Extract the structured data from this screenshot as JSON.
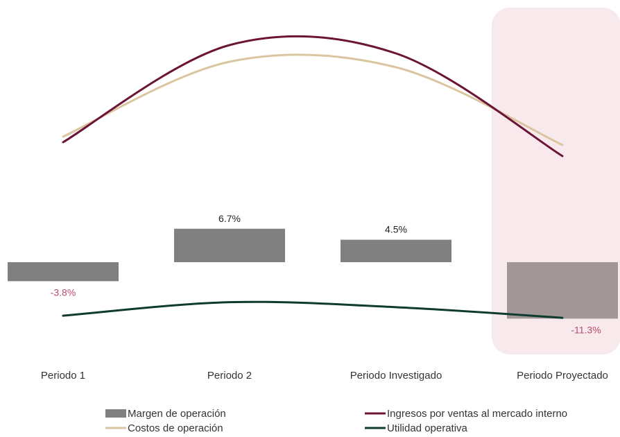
{
  "chart_data": {
    "type": "bar",
    "categories": [
      "Periodo 1",
      "Periodo 2",
      "Periodo Investigado",
      "Periodo Proyectado"
    ],
    "series": [
      {
        "name": "Margen de operación",
        "kind": "bar",
        "values": [
          -3.8,
          6.7,
          4.5,
          -11.3
        ],
        "labels": [
          "-3.8%",
          "6.7%",
          "4.5%",
          "-11.3%"
        ],
        "color": "#808080"
      },
      {
        "name": "Ingresos por ventas al mercado interno",
        "kind": "line",
        "values": [
          70,
          105,
          102,
          65
        ],
        "color": "#6b1436"
      },
      {
        "name": "Costos de operación",
        "kind": "line",
        "values": [
          72,
          99,
          97,
          69
        ],
        "color": "#dbc5a1"
      },
      {
        "name": "Utilidad operativa",
        "kind": "line",
        "values": [
          -2.5,
          7.0,
          3.5,
          -4.0
        ],
        "color": "#0f3b2e"
      }
    ],
    "highlight_category": "Periodo Proyectado",
    "highlight_color": "#f8e9ec",
    "negative_label_color": "#b94a6e",
    "legend": [
      {
        "label": "Margen de operación",
        "marker": "box",
        "color": "#808080"
      },
      {
        "label": "Ingresos por ventas al mercado interno",
        "marker": "line",
        "color": "#6b1436"
      },
      {
        "label": "Costos de operación",
        "marker": "line",
        "color": "#dbc5a1"
      },
      {
        "label": "Utilidad operativa",
        "marker": "line",
        "color": "#0f3b2e"
      }
    ],
    "legend_position": "bottom",
    "title": "",
    "xlabel": "",
    "ylabel": "",
    "grid": false
  }
}
